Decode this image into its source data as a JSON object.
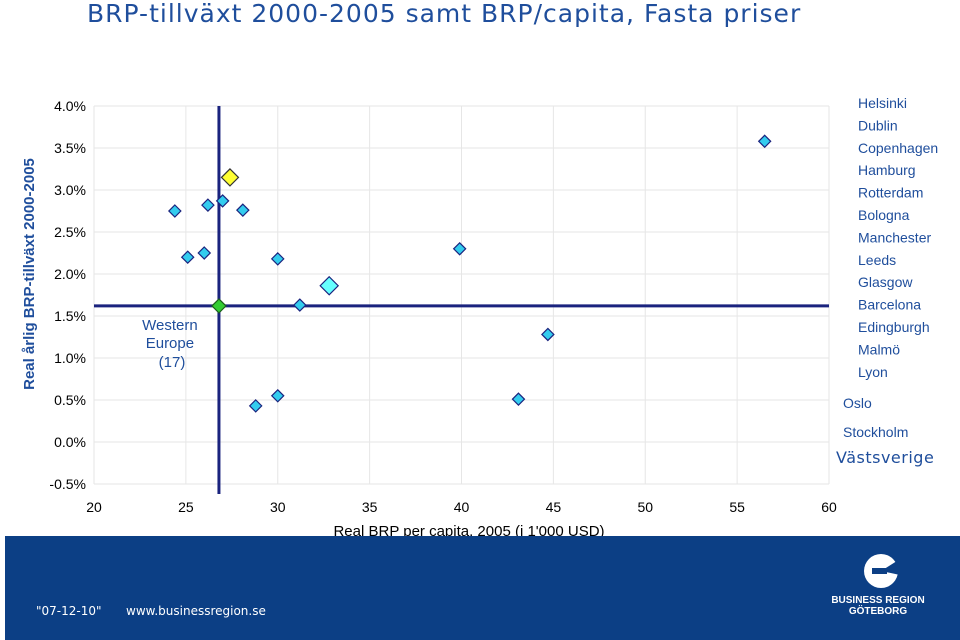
{
  "title": "BRP-tillväxt 2000-2005 samt BRP/capita, Fasta priser",
  "chart_data": {
    "type": "scatter",
    "title": "BRP-tillväxt 2000-2005 samt BRP/capita, Fasta priser",
    "xlabel": "Real BRP per capita, 2005 (i 1'000 USD)",
    "ylabel": "Real årlig BRP-tillväxt 2000-2005",
    "xlim": [
      20,
      60
    ],
    "ylim": [
      -0.5,
      4.0
    ],
    "x_ticks": [
      "20",
      "25",
      "30",
      "35",
      "40",
      "45",
      "50",
      "55",
      "60"
    ],
    "y_ticks": [
      "4.0%",
      "3.5%",
      "3.0%",
      "2.5%",
      "2.0%",
      "1.5%",
      "1.0%",
      "0.5%",
      "0.0%",
      "-0.5%"
    ],
    "grid": true,
    "reference_lines": {
      "x": 26.8,
      "y": 1.62
    },
    "reference_label": [
      "Western",
      "Europe",
      "(17)"
    ],
    "points": [
      {
        "x": 24.4,
        "y": 2.75,
        "style": "normal"
      },
      {
        "x": 25.1,
        "y": 2.2,
        "style": "normal"
      },
      {
        "x": 26.0,
        "y": 2.25,
        "style": "normal"
      },
      {
        "x": 26.2,
        "y": 2.82,
        "style": "normal"
      },
      {
        "x": 27.0,
        "y": 2.87,
        "style": "normal"
      },
      {
        "x": 27.4,
        "y": 3.15,
        "style": "highlight-yellow"
      },
      {
        "x": 28.1,
        "y": 2.76,
        "style": "normal"
      },
      {
        "x": 28.8,
        "y": 0.43,
        "style": "normal"
      },
      {
        "x": 30.0,
        "y": 0.55,
        "style": "normal"
      },
      {
        "x": 30.0,
        "y": 2.18,
        "style": "normal"
      },
      {
        "x": 31.2,
        "y": 1.63,
        "style": "normal"
      },
      {
        "x": 32.8,
        "y": 1.86,
        "style": "highlight-large"
      },
      {
        "x": 39.9,
        "y": 2.3,
        "style": "normal"
      },
      {
        "x": 43.1,
        "y": 0.51,
        "style": "normal"
      },
      {
        "x": 44.7,
        "y": 1.28,
        "style": "normal"
      },
      {
        "x": 56.5,
        "y": 3.58,
        "style": "normal"
      },
      {
        "x": 26.8,
        "y": 1.62,
        "style": "average-green"
      }
    ],
    "legend": {
      "group1": [
        "Helsinki",
        "Dublin",
        "Copenhagen",
        "Hamburg",
        "Rotterdam",
        "Bologna",
        "Manchester",
        "Leeds",
        "Glasgow",
        "Barcelona",
        "Edingburgh",
        "Malmö",
        "Lyon"
      ],
      "group2": [
        "Oslo",
        "Stockholm"
      ],
      "highlight": "Västsverige"
    }
  },
  "footer": {
    "date": "\"07-12-10\"",
    "url": "www.businessregion.se",
    "logo_line1": "BUSINESS REGION",
    "logo_line2": "GÖTEBORG"
  },
  "colors": {
    "title": "#1f4e9c",
    "point_fill": "#33ccee",
    "point_highlight": "#ffff33",
    "point_large": "#66ffff",
    "average": "#33cc33",
    "reference": "#1a237e",
    "footer_bg": "#0c3f85"
  }
}
